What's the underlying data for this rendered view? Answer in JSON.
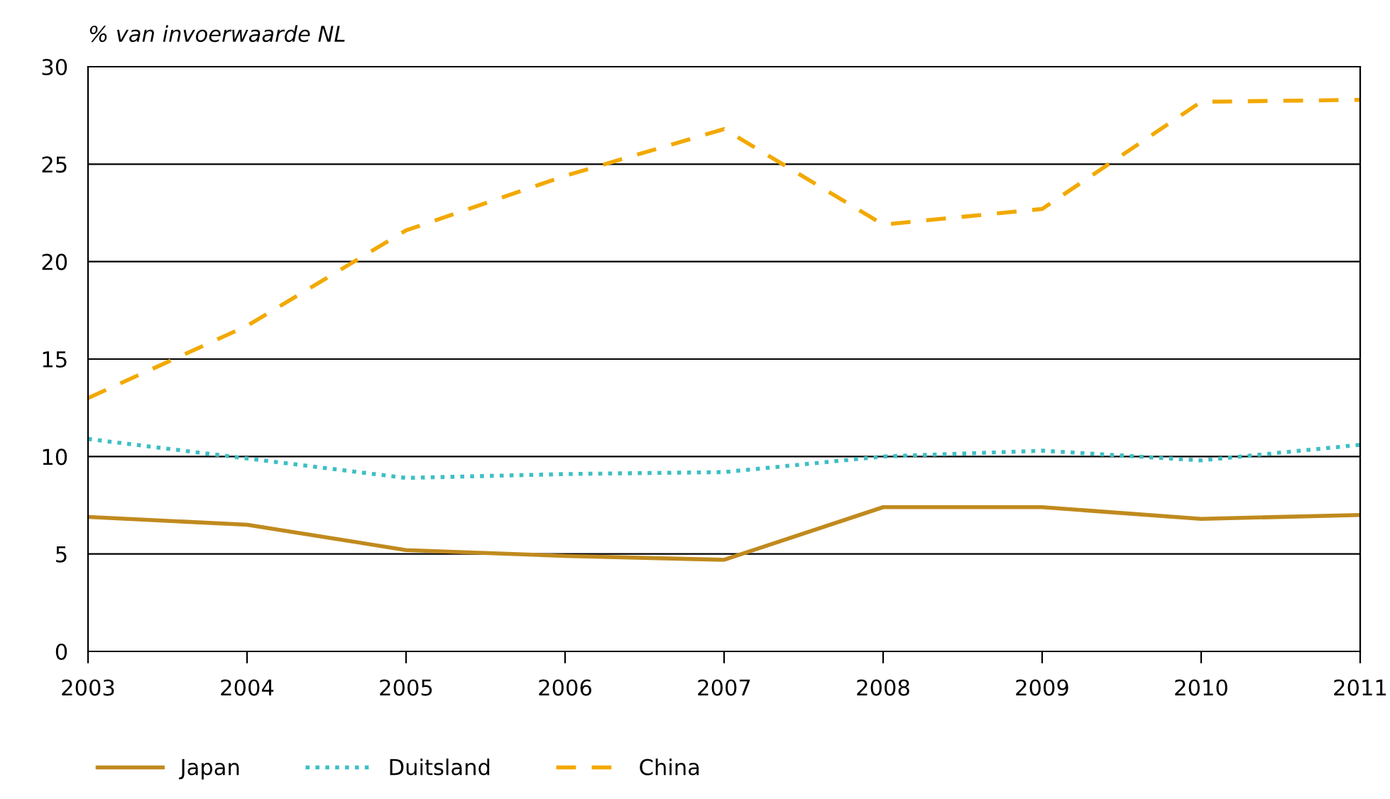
{
  "chart_data": {
    "type": "line",
    "ylabel": "% van invoerwaarde NL",
    "x": [
      2003,
      2004,
      2005,
      2006,
      2007,
      2008,
      2009,
      2010,
      2011
    ],
    "series": [
      {
        "name": "Japan",
        "color": "#c08a1e",
        "line_style": "solid",
        "values": [
          6.9,
          6.5,
          5.2,
          4.9,
          4.7,
          7.4,
          7.4,
          6.8,
          7.0
        ]
      },
      {
        "name": "Duitsland",
        "color": "#3dbfc4",
        "line_style": "dotted",
        "values": [
          10.9,
          9.9,
          8.9,
          9.1,
          9.2,
          10.0,
          10.3,
          9.8,
          10.6
        ]
      },
      {
        "name": "China",
        "color": "#f2a900",
        "line_style": "dashed",
        "values": [
          13.0,
          16.7,
          21.6,
          24.4,
          26.8,
          21.9,
          22.7,
          28.2,
          28.3
        ]
      }
    ],
    "xlim": [
      2003,
      2011
    ],
    "xticks": [
      2003,
      2004,
      2005,
      2006,
      2007,
      2008,
      2009,
      2010,
      2011
    ],
    "ylim": [
      0,
      30
    ],
    "yticks": [
      0,
      5,
      10,
      15,
      20,
      25,
      30
    ],
    "grid": "y",
    "legend": "bottom left",
    "marker": "none"
  }
}
